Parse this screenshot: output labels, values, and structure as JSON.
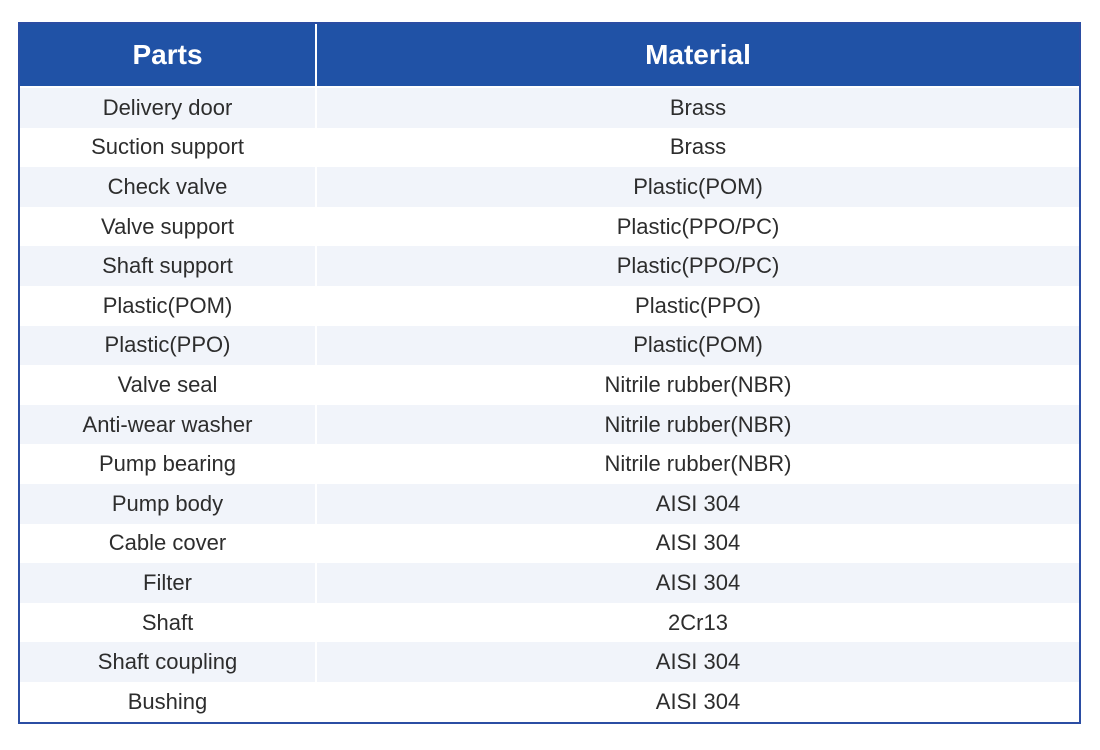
{
  "table": {
    "columns": [
      {
        "label": "Parts"
      },
      {
        "label": "Material"
      }
    ],
    "rows": [
      {
        "part": "Delivery door",
        "material": "Brass"
      },
      {
        "part": "Suction support",
        "material": "Brass"
      },
      {
        "part": "Check valve",
        "material": "Plastic(POM)"
      },
      {
        "part": "Valve support",
        "material": "Plastic(PPO/PC)"
      },
      {
        "part": "Shaft support",
        "material": "Plastic(PPO/PC)"
      },
      {
        "part": "Plastic(POM)",
        "material": "Plastic(PPO)"
      },
      {
        "part": "Plastic(PPO)",
        "material": "Plastic(POM)"
      },
      {
        "part": "Valve seal",
        "material": "Nitrile rubber(NBR)"
      },
      {
        "part": "Anti-wear washer",
        "material": "Nitrile rubber(NBR)"
      },
      {
        "part": "Pump bearing",
        "material": "Nitrile rubber(NBR)"
      },
      {
        "part": "Pump body",
        "material": "AISI 304"
      },
      {
        "part": "Cable cover",
        "material": "AISI 304"
      },
      {
        "part": "Filter",
        "material": "AISI 304"
      },
      {
        "part": "Shaft",
        "material": "2Cr13"
      },
      {
        "part": "Shaft coupling",
        "material": "AISI 304"
      },
      {
        "part": "Bushing",
        "material": "AISI 304"
      }
    ]
  },
  "colors": {
    "header_bg": "#2052A6",
    "border": "#2B4DA3",
    "row_alt_bg": "#F1F4FA",
    "row_bg": "#FFFFFF",
    "header_text": "#FFFFFF",
    "body_text": "#2D2D2D",
    "divider": "#FFFFFF"
  }
}
